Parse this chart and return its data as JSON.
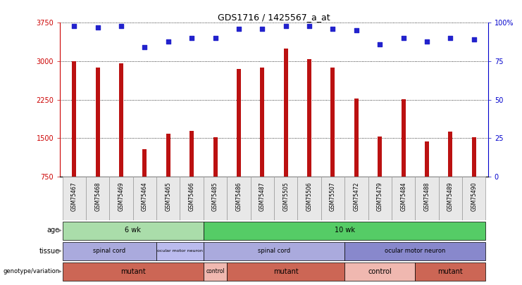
{
  "title": "GDS1716 / 1425567_a_at",
  "samples": [
    "GSM75467",
    "GSM75468",
    "GSM75469",
    "GSM75464",
    "GSM75465",
    "GSM75466",
    "GSM75485",
    "GSM75486",
    "GSM75487",
    "GSM75505",
    "GSM75506",
    "GSM75507",
    "GSM75472",
    "GSM75479",
    "GSM75484",
    "GSM75488",
    "GSM75489",
    "GSM75490"
  ],
  "counts": [
    3000,
    2870,
    2960,
    1280,
    1590,
    1640,
    1520,
    2850,
    2870,
    3250,
    3040,
    2870,
    2270,
    1530,
    2260,
    1430,
    1630,
    1520
  ],
  "percentile_ranks": [
    98,
    97,
    98,
    84,
    88,
    90,
    90,
    96,
    96,
    98,
    98,
    96,
    95,
    86,
    90,
    88,
    90,
    89
  ],
  "ymin": 750,
  "ymax": 3750,
  "yticks": [
    750,
    1500,
    2250,
    3000,
    3750
  ],
  "ytick_labels": [
    "750",
    "1500",
    "2250",
    "3000",
    "3750"
  ],
  "right_yticks": [
    0,
    25,
    50,
    75,
    100
  ],
  "right_ytick_labels": [
    "0",
    "25",
    "50",
    "75",
    "100%"
  ],
  "bar_color": "#bb1111",
  "dot_color": "#2222cc",
  "bar_width": 0.18,
  "age_groups": [
    {
      "label": "6 wk",
      "start": 0,
      "end": 6,
      "color": "#aaddaa"
    },
    {
      "label": "10 wk",
      "start": 6,
      "end": 18,
      "color": "#55cc66"
    }
  ],
  "tissue_groups": [
    {
      "label": "spinal cord",
      "start": 0,
      "end": 4,
      "color": "#aaaadd"
    },
    {
      "label": "ocular motor neuron",
      "start": 4,
      "end": 6,
      "color": "#bbbbee"
    },
    {
      "label": "spinal cord",
      "start": 6,
      "end": 12,
      "color": "#aaaadd"
    },
    {
      "label": "ocular motor neuron",
      "start": 12,
      "end": 18,
      "color": "#8888cc"
    }
  ],
  "geno_groups": [
    {
      "label": "mutant",
      "start": 0,
      "end": 6,
      "color": "#cc6655"
    },
    {
      "label": "control",
      "start": 6,
      "end": 7,
      "color": "#f0b8b0"
    },
    {
      "label": "mutant",
      "start": 7,
      "end": 12,
      "color": "#cc6655"
    },
    {
      "label": "control",
      "start": 12,
      "end": 15,
      "color": "#f0b8b0"
    },
    {
      "label": "mutant",
      "start": 15,
      "end": 18,
      "color": "#cc6655"
    }
  ]
}
